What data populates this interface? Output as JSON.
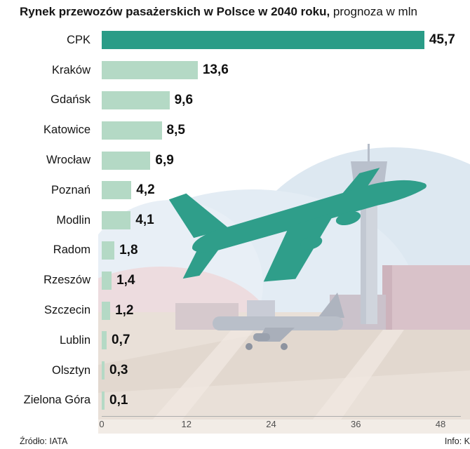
{
  "title": {
    "bold": "Rynek przewozów pasażerskich w Polsce w 2040 roku,",
    "regular": "prognoza w mln"
  },
  "footer": {
    "source": "Źródło: IATA",
    "credit": "Info: K"
  },
  "chart_data": {
    "type": "bar",
    "orientation": "horizontal",
    "title": "Rynek przewozów pasażerskich w Polsce w 2040 roku — prognoza w mln",
    "categories": [
      "CPK",
      "Kraków",
      "Gdańsk",
      "Katowice",
      "Wrocław",
      "Poznań",
      "Modlin",
      "Radom",
      "Rzeszów",
      "Szczecin",
      "Lublin",
      "Olsztyn",
      "Zielona Góra"
    ],
    "values": [
      45.7,
      13.6,
      9.6,
      8.5,
      6.9,
      4.2,
      4.1,
      1.8,
      1.4,
      1.2,
      0.7,
      0.3,
      0.1
    ],
    "value_labels": [
      "45,7",
      "13,6",
      "9,6",
      "8,5",
      "6,9",
      "4,2",
      "4,1",
      "1,8",
      "1,4",
      "1,2",
      "0,7",
      "0,3",
      "0,1"
    ],
    "xlim": [
      0,
      48
    ],
    "xticks": [
      0,
      12,
      24,
      36,
      48
    ],
    "grid": false,
    "legend": false,
    "colors": {
      "highlight": "#2a9c87",
      "bar": "#b4d9c5",
      "axis_line": "#adadad",
      "illustration_plane": "#2f9e8a"
    }
  }
}
